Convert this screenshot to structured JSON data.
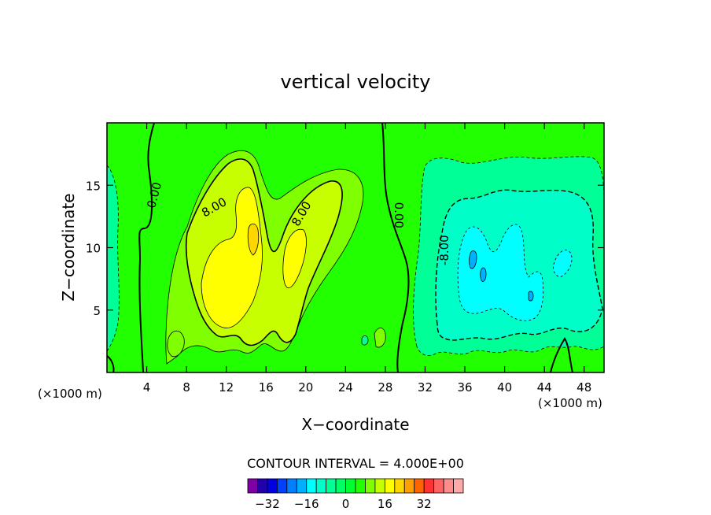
{
  "chart_data": {
    "type": "heatmap",
    "title": "vertical velocity",
    "xlabel": "X−coordinate",
    "ylabel": "Z−coordinate",
    "x_unit_left": "(×1000 m)",
    "x_unit_right": "(×1000 m)",
    "xlim": [
      0,
      50
    ],
    "ylim": [
      0,
      20
    ],
    "x_ticks": [
      4,
      8,
      12,
      16,
      20,
      24,
      28,
      32,
      36,
      40,
      44,
      48
    ],
    "x_tick_labels": [
      "4",
      "8",
      "12",
      "16",
      "20",
      "24",
      "28",
      "32",
      "36",
      "40",
      "44",
      "48"
    ],
    "y_ticks": [
      5,
      10,
      15
    ],
    "y_tick_labels": [
      "5",
      "10",
      "15"
    ],
    "contour_interval_text": "CONTOUR INTERVAL = 4.000E+00",
    "contour_labels": [
      {
        "text": "0.00",
        "x": 4.8,
        "y": 14.2,
        "rotate": -75
      },
      {
        "text": "8.00",
        "x": 10.8,
        "y": 13.2,
        "rotate": -30
      },
      {
        "text": "8.00",
        "x": 19.6,
        "y": 12.7,
        "rotate": -60
      },
      {
        "text": "0.00",
        "x": 29.3,
        "y": 12.6,
        "rotate": 90
      },
      {
        "text": "-8.00",
        "x": 34.0,
        "y": 9.8,
        "rotate": -90
      }
    ],
    "colorbar": {
      "levels": [
        -36,
        -32,
        -28,
        -24,
        -20,
        -16,
        -12,
        -8,
        -4,
        0,
        4,
        8,
        12,
        16,
        20,
        24,
        28,
        32,
        36
      ],
      "colors": [
        "#7f00a5",
        "#2200aa",
        "#0000e0",
        "#0040ff",
        "#0080ff",
        "#00b0ff",
        "#00ffff",
        "#00ffc8",
        "#00ff96",
        "#00ff64",
        "#00ff30",
        "#21ff00",
        "#80ff00",
        "#c8ff00",
        "#ffff00",
        "#ffd700",
        "#ff9f00",
        "#ff6400",
        "#ff3232",
        "#ff6464",
        "#ff8c8c",
        "#ffaaaa"
      ],
      "tick_values": [
        -32,
        -16,
        0,
        16,
        32
      ],
      "tick_labels": [
        "−32",
        "−16",
        "0",
        "16",
        "32"
      ]
    },
    "fields": {
      "background_level": 4,
      "updraft_regions_left": "x 8–30 km, z 1–18 km, peak about 20 near x 15, z 11",
      "downdraft_regions_right": "x 32–50 km, z 1–16 km, minimum about −20 near x 38–43, z 7–9"
    }
  }
}
